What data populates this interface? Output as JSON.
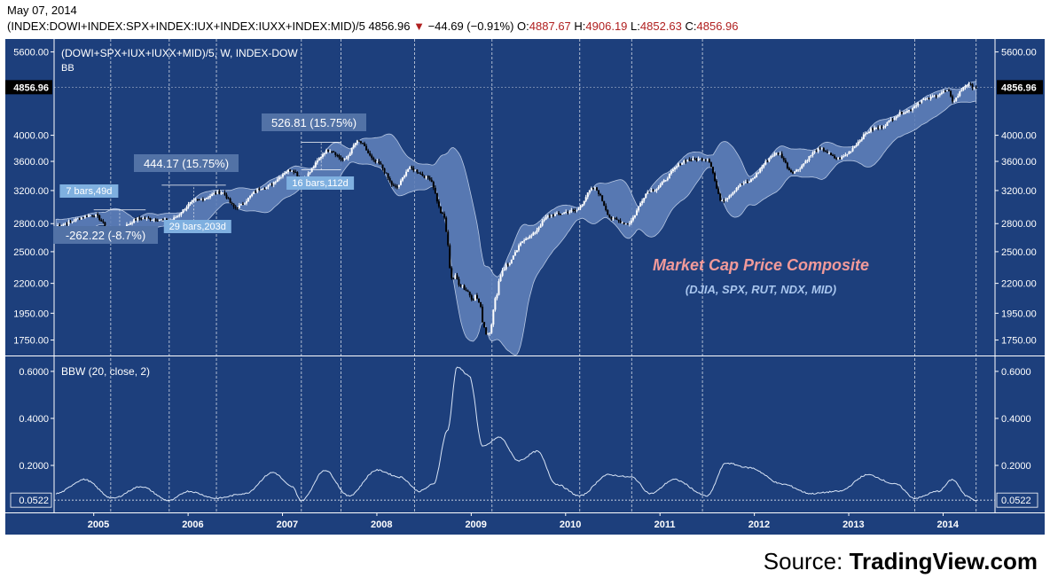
{
  "header": {
    "date": "May 07, 2014",
    "symbol": "(INDEX:DOWI+INDEX:SPX+INDEX:IUX+INDEX:IUXX+INDEX:MID)/5",
    "last": "4856.96",
    "change": "−44.69 (−0.91%)",
    "open_label": "O:",
    "open": "4887.67",
    "high_label": "H:",
    "high": "4906.19",
    "low_label": "L:",
    "low": "4852.63",
    "close_label": "C:",
    "close": "4856.96"
  },
  "colors": {
    "panel_bg": "#1d3f7c",
    "band_fill": "#5e7fb8",
    "grid_line": "#ffffff",
    "candle_up": "#ffffff",
    "candle_down": "#000000",
    "annotation_box": "#5272a6",
    "label_box": "#7fb0e0",
    "title_text": "#f29a9a",
    "subtitle_text": "#a9c6ee"
  },
  "source": {
    "prefix": "Source: ",
    "brand": "TradingView.com"
  },
  "chart_data": [
    {
      "type": "candlestick",
      "title": "(DOWI+SPX+IUX+IUXX+MID)/5, W, INDEX-DOW",
      "indicator_label": "BB",
      "annotation_title": "Market Cap Price Composite",
      "annotation_subtitle": "(DJIA, SPX, RUT, NDX, MID)",
      "y_ticks": [
        "5600.00",
        "4000.00",
        "3600.00",
        "3200.00",
        "2800.00",
        "2500.00",
        "2200.00",
        "1950.00",
        "1750.00"
      ],
      "last_value_label": "4856.96",
      "y_scale": "log",
      "ylim": [
        1650,
        5900
      ],
      "x_categories": [
        "2005",
        "2006",
        "2007",
        "2008",
        "2009",
        "2010",
        "2011",
        "2012",
        "2013",
        "2014"
      ],
      "anchors": [
        {
          "t": 2004.6,
          "v": 2780
        },
        {
          "t": 2005.0,
          "v": 2900
        },
        {
          "t": 2005.2,
          "v": 2700
        },
        {
          "t": 2005.5,
          "v": 2860
        },
        {
          "t": 2005.8,
          "v": 2840
        },
        {
          "t": 2006.1,
          "v": 3080
        },
        {
          "t": 2006.35,
          "v": 3180
        },
        {
          "t": 2006.5,
          "v": 2990
        },
        {
          "t": 2006.8,
          "v": 3240
        },
        {
          "t": 2007.1,
          "v": 3480
        },
        {
          "t": 2007.2,
          "v": 3360
        },
        {
          "t": 2007.5,
          "v": 3770
        },
        {
          "t": 2007.65,
          "v": 3620
        },
        {
          "t": 2007.8,
          "v": 3900
        },
        {
          "t": 2008.0,
          "v": 3580
        },
        {
          "t": 2008.2,
          "v": 3240
        },
        {
          "t": 2008.35,
          "v": 3500
        },
        {
          "t": 2008.55,
          "v": 3370
        },
        {
          "t": 2008.7,
          "v": 2900
        },
        {
          "t": 2008.8,
          "v": 2250
        },
        {
          "t": 2009.05,
          "v": 2080
        },
        {
          "t": 2009.17,
          "v": 1800
        },
        {
          "t": 2009.35,
          "v": 2350
        },
        {
          "t": 2009.6,
          "v": 2650
        },
        {
          "t": 2009.85,
          "v": 2900
        },
        {
          "t": 2010.1,
          "v": 2950
        },
        {
          "t": 2010.3,
          "v": 3230
        },
        {
          "t": 2010.5,
          "v": 2850
        },
        {
          "t": 2010.65,
          "v": 2800
        },
        {
          "t": 2010.9,
          "v": 3200
        },
        {
          "t": 2011.3,
          "v": 3620
        },
        {
          "t": 2011.5,
          "v": 3640
        },
        {
          "t": 2011.65,
          "v": 3080
        },
        {
          "t": 2011.9,
          "v": 3300
        },
        {
          "t": 2012.25,
          "v": 3720
        },
        {
          "t": 2012.4,
          "v": 3450
        },
        {
          "t": 2012.7,
          "v": 3780
        },
        {
          "t": 2012.88,
          "v": 3640
        },
        {
          "t": 2013.3,
          "v": 4120
        },
        {
          "t": 2013.6,
          "v": 4400
        },
        {
          "t": 2013.8,
          "v": 4620
        },
        {
          "t": 2014.05,
          "v": 4780
        },
        {
          "t": 2014.1,
          "v": 4600
        },
        {
          "t": 2014.25,
          "v": 4900
        },
        {
          "t": 2014.35,
          "v": 4857
        }
      ],
      "annotations": [
        {
          "label": "444.17 (15.75%)",
          "sub_label": "29 bars,203d"
        },
        {
          "label": "526.81 (15.75%)",
          "sub_label": "16 bars,112d"
        },
        {
          "label": "-262.22 (-8.7%)",
          "sub_label": "7 bars,49d"
        }
      ]
    },
    {
      "type": "line",
      "title": "BBW (20, close, 2)",
      "y_ticks": [
        "0.6000",
        "0.4000",
        "0.2000"
      ],
      "last_value_label": "0.0522",
      "ylim": [
        0.0,
        0.66
      ],
      "anchors": [
        {
          "t": 2004.6,
          "v": 0.08
        },
        {
          "t": 2004.9,
          "v": 0.14
        },
        {
          "t": 2005.2,
          "v": 0.06
        },
        {
          "t": 2005.5,
          "v": 0.11
        },
        {
          "t": 2005.8,
          "v": 0.05
        },
        {
          "t": 2006.0,
          "v": 0.09
        },
        {
          "t": 2006.3,
          "v": 0.06
        },
        {
          "t": 2006.6,
          "v": 0.08
        },
        {
          "t": 2006.9,
          "v": 0.17
        },
        {
          "t": 2007.1,
          "v": 0.11
        },
        {
          "t": 2007.2,
          "v": 0.05
        },
        {
          "t": 2007.45,
          "v": 0.18
        },
        {
          "t": 2007.7,
          "v": 0.07
        },
        {
          "t": 2008.0,
          "v": 0.18
        },
        {
          "t": 2008.25,
          "v": 0.15
        },
        {
          "t": 2008.45,
          "v": 0.09
        },
        {
          "t": 2008.6,
          "v": 0.12
        },
        {
          "t": 2008.75,
          "v": 0.35
        },
        {
          "t": 2008.85,
          "v": 0.62
        },
        {
          "t": 2008.98,
          "v": 0.58
        },
        {
          "t": 2009.12,
          "v": 0.28
        },
        {
          "t": 2009.3,
          "v": 0.32
        },
        {
          "t": 2009.5,
          "v": 0.22
        },
        {
          "t": 2009.7,
          "v": 0.26
        },
        {
          "t": 2009.9,
          "v": 0.12
        },
        {
          "t": 2010.15,
          "v": 0.07
        },
        {
          "t": 2010.45,
          "v": 0.16
        },
        {
          "t": 2010.7,
          "v": 0.15
        },
        {
          "t": 2010.9,
          "v": 0.08
        },
        {
          "t": 2011.15,
          "v": 0.14
        },
        {
          "t": 2011.5,
          "v": 0.07
        },
        {
          "t": 2011.7,
          "v": 0.21
        },
        {
          "t": 2011.95,
          "v": 0.19
        },
        {
          "t": 2012.3,
          "v": 0.12
        },
        {
          "t": 2012.6,
          "v": 0.08
        },
        {
          "t": 2012.9,
          "v": 0.09
        },
        {
          "t": 2013.2,
          "v": 0.16
        },
        {
          "t": 2013.5,
          "v": 0.12
        },
        {
          "t": 2013.7,
          "v": 0.06
        },
        {
          "t": 2013.95,
          "v": 0.09
        },
        {
          "t": 2014.1,
          "v": 0.14
        },
        {
          "t": 2014.25,
          "v": 0.07
        },
        {
          "t": 2014.35,
          "v": 0.0522
        }
      ]
    }
  ]
}
